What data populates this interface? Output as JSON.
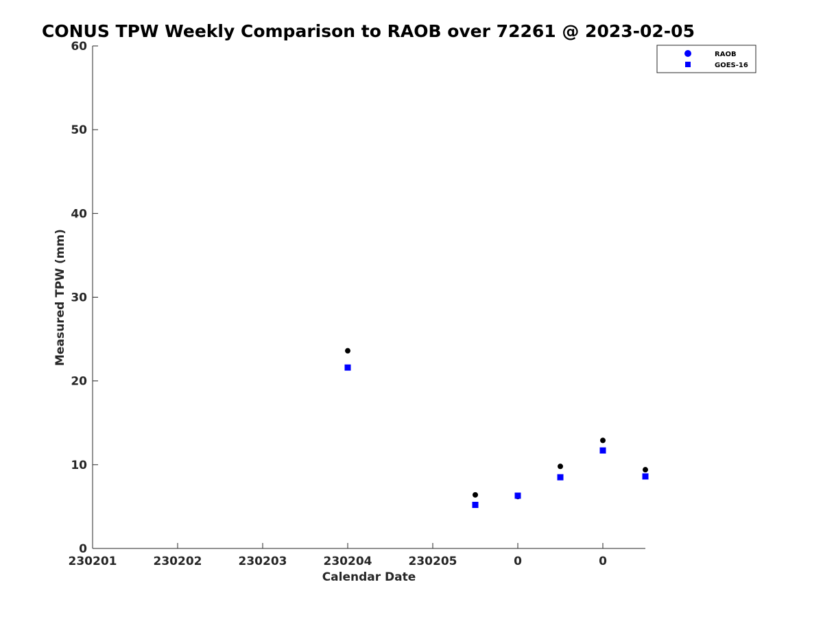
{
  "chart_data": {
    "type": "scatter",
    "title": "CONUS TPW Weekly Comparison to RAOB over 72261 @ 2023-02-05",
    "xlabel": "Calendar Date",
    "ylabel": "Measured TPW (mm)",
    "xlim": [
      0,
      6.5
    ],
    "ylim": [
      0,
      60
    ],
    "x_ticks": [
      0,
      1,
      2,
      3,
      4,
      5,
      6
    ],
    "x_tick_labels": [
      "230201",
      "230202",
      "230203",
      "230204",
      "230205",
      "0",
      "0"
    ],
    "y_ticks": [
      0,
      10,
      20,
      30,
      40,
      50,
      60
    ],
    "y_tick_labels": [
      "0",
      "10",
      "20",
      "30",
      "40",
      "50",
      "60"
    ],
    "grid": false,
    "legend_position": "top-right",
    "series": [
      {
        "name": "RAOB",
        "marker": "circle",
        "color": "#000000",
        "legend_color": "#0000ff",
        "points": [
          {
            "x": 3.0,
            "y": 23.6
          },
          {
            "x": 4.5,
            "y": 6.4
          },
          {
            "x": 5.0,
            "y": 6.2
          },
          {
            "x": 5.5,
            "y": 9.8
          },
          {
            "x": 6.0,
            "y": 12.9
          },
          {
            "x": 6.5,
            "y": 9.4
          }
        ]
      },
      {
        "name": "GOES-16",
        "marker": "square",
        "color": "#0000ff",
        "legend_color": "#0000ff",
        "points": [
          {
            "x": 3.0,
            "y": 21.6
          },
          {
            "x": 4.5,
            "y": 5.2
          },
          {
            "x": 5.0,
            "y": 6.3
          },
          {
            "x": 5.5,
            "y": 8.5
          },
          {
            "x": 6.0,
            "y": 11.7
          },
          {
            "x": 6.5,
            "y": 8.6
          }
        ]
      }
    ]
  }
}
